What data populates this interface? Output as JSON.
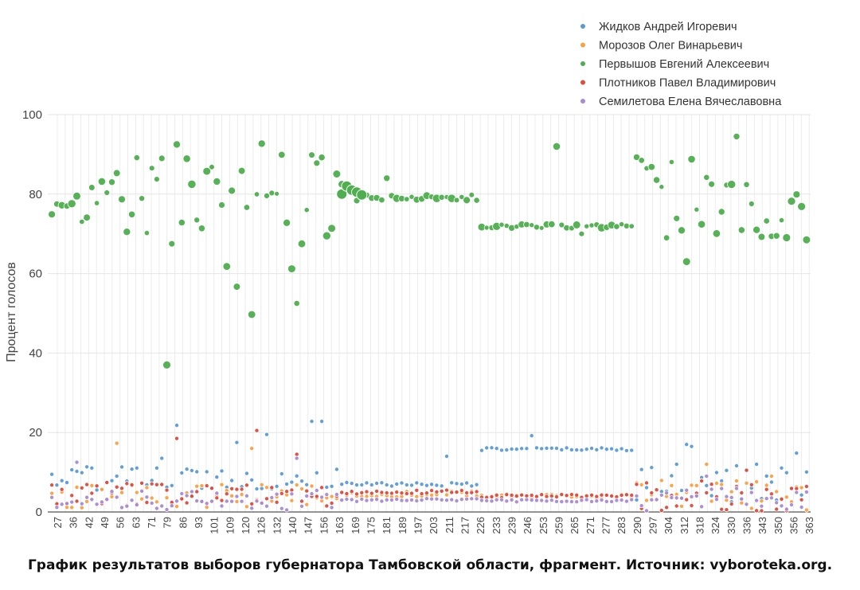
{
  "caption": "График результатов выборов губернатора Тамбовской области, фрагмент. Источник: vyboroteka.org.",
  "chart_data": {
    "type": "scatter",
    "ylabel": "Процент голосов",
    "ylim": [
      0,
      100
    ],
    "yticks": [
      0,
      20,
      40,
      60,
      80,
      100
    ],
    "x_tick_labels": [
      "27",
      "36",
      "42",
      "49",
      "56",
      "63",
      "71",
      "79",
      "86",
      "93",
      "101",
      "109",
      "120",
      "126",
      "132",
      "140",
      "147",
      "156",
      "163",
      "169",
      "175",
      "181",
      "189",
      "197",
      "203",
      "211",
      "217",
      "226",
      "233",
      "239",
      "246",
      "253",
      "259",
      "265",
      "271",
      "277",
      "283",
      "290",
      "297",
      "304",
      "312",
      "318",
      "324",
      "330",
      "336",
      "343",
      "350",
      "356",
      "363"
    ],
    "grid": true,
    "legend_position": "top-right",
    "series": [
      {
        "name": "Жидков Андрей Игоревич",
        "color": "#5b9bd5",
        "segments": [
          {
            "count": 58,
            "level": 8.5,
            "jitter": 3,
            "spikes": [
              [
                22,
                13.5
              ],
              [
                25,
                21.8
              ],
              [
                37,
                17.5
              ],
              [
                43,
                19.5
              ],
              [
                58,
                11.5
              ],
              [
                52,
                22.8
              ],
              [
                54,
                22.8
              ]
            ]
          },
          {
            "count": 28,
            "level": 7,
            "jitter": 0.5,
            "spikes": [
              [
                21,
                14
              ]
            ]
          },
          {
            "count": 31,
            "level": 15.8,
            "jitter": 0.4,
            "spikes": [
              [
                10,
                19.2
              ]
            ]
          },
          {
            "count": 35,
            "level": 7,
            "jitter": 5,
            "spikes": [
              [
                10,
                17
              ],
              [
                11,
                16.5
              ],
              [
                24,
                12
              ],
              [
                32,
                14.8
              ]
            ]
          }
        ]
      },
      {
        "name": "Морозов Олег Винарьевич",
        "color": "#ff9f40",
        "segments": [
          {
            "count": 58,
            "level": 4,
            "jitter": 3,
            "spikes": [
              [
                13,
                17.3
              ],
              [
                40,
                16
              ]
            ]
          },
          {
            "count": 28,
            "level": 4.5,
            "jitter": 0.8,
            "spikes": []
          },
          {
            "count": 31,
            "level": 4,
            "jitter": 0.6,
            "spikes": []
          },
          {
            "count": 35,
            "level": 4,
            "jitter": 4,
            "spikes": [
              [
                14,
                12
              ],
              [
                27,
                9
              ]
            ]
          }
        ]
      },
      {
        "name": "Первышов Евгений Алексеевич",
        "color": "#4fae4f",
        "segments": [
          {
            "count": 58,
            "level": 80,
            "jitter": 10,
            "spikes": [
              [
                3,
                77
              ],
              [
                5,
                79.5
              ],
              [
                15,
                70.5
              ],
              [
                23,
                37
              ],
              [
                24,
                67.5
              ],
              [
                25,
                92.5
              ],
              [
                35,
                61.8
              ],
              [
                37,
                56.7
              ],
              [
                40,
                49.7
              ],
              [
                42,
                92.7
              ],
              [
                48,
                61.2
              ],
              [
                49,
                52.5
              ],
              [
                50,
                67.5
              ],
              [
                55,
                69.5
              ],
              [
                1,
                77.5
              ],
              [
                2,
                77.2
              ],
              [
                4,
                77.6
              ]
            ]
          },
          {
            "count": 28,
            "level": 79,
            "jitter": 0.8,
            "spikes": [
              [
                0,
                82.5
              ],
              [
                1,
                81.5
              ],
              [
                2,
                80.5
              ],
              [
                9,
                84
              ],
              [
                26,
                79.8
              ]
            ]
          },
          {
            "count": 31,
            "level": 72,
            "jitter": 0.6,
            "spikes": [
              [
                15,
                92
              ],
              [
                20,
                70
              ]
            ]
          },
          {
            "count": 35,
            "level": 80,
            "jitter": 11,
            "spikes": [
              [
                2,
                86.5
              ],
              [
                6,
                69
              ],
              [
                10,
                63
              ],
              [
                15,
                82.5
              ],
              [
                20,
                94.5
              ],
              [
                24,
                71
              ],
              [
                28,
                69.5
              ],
              [
                34,
                68.5
              ]
            ]
          }
        ]
      },
      {
        "name": "Плотников Павел Владимирович",
        "color": "#e04b3c",
        "segments": [
          {
            "count": 58,
            "level": 4.5,
            "jitter": 3,
            "spikes": [
              [
                25,
                18.5
              ],
              [
                41,
                20.5
              ],
              [
                49,
                14.5
              ]
            ]
          },
          {
            "count": 28,
            "level": 5,
            "jitter": 0.5,
            "spikes": []
          },
          {
            "count": 31,
            "level": 4,
            "jitter": 0.4,
            "spikes": []
          },
          {
            "count": 35,
            "level": 4,
            "jitter": 4,
            "spikes": [
              [
                22,
                10.5
              ]
            ]
          }
        ]
      },
      {
        "name": "Семилетова Елена Вячеславовна",
        "color": "#a78bd4",
        "segments": [
          {
            "count": 58,
            "level": 3,
            "jitter": 2.5,
            "spikes": [
              [
                5,
                12.5
              ],
              [
                49,
                13.5
              ]
            ]
          },
          {
            "count": 28,
            "level": 3,
            "jitter": 0.4,
            "spikes": []
          },
          {
            "count": 31,
            "level": 2.8,
            "jitter": 0.3,
            "spikes": []
          },
          {
            "count": 35,
            "level": 3,
            "jitter": 3,
            "spikes": [
              [
                14,
                9
              ]
            ]
          }
        ]
      }
    ]
  }
}
